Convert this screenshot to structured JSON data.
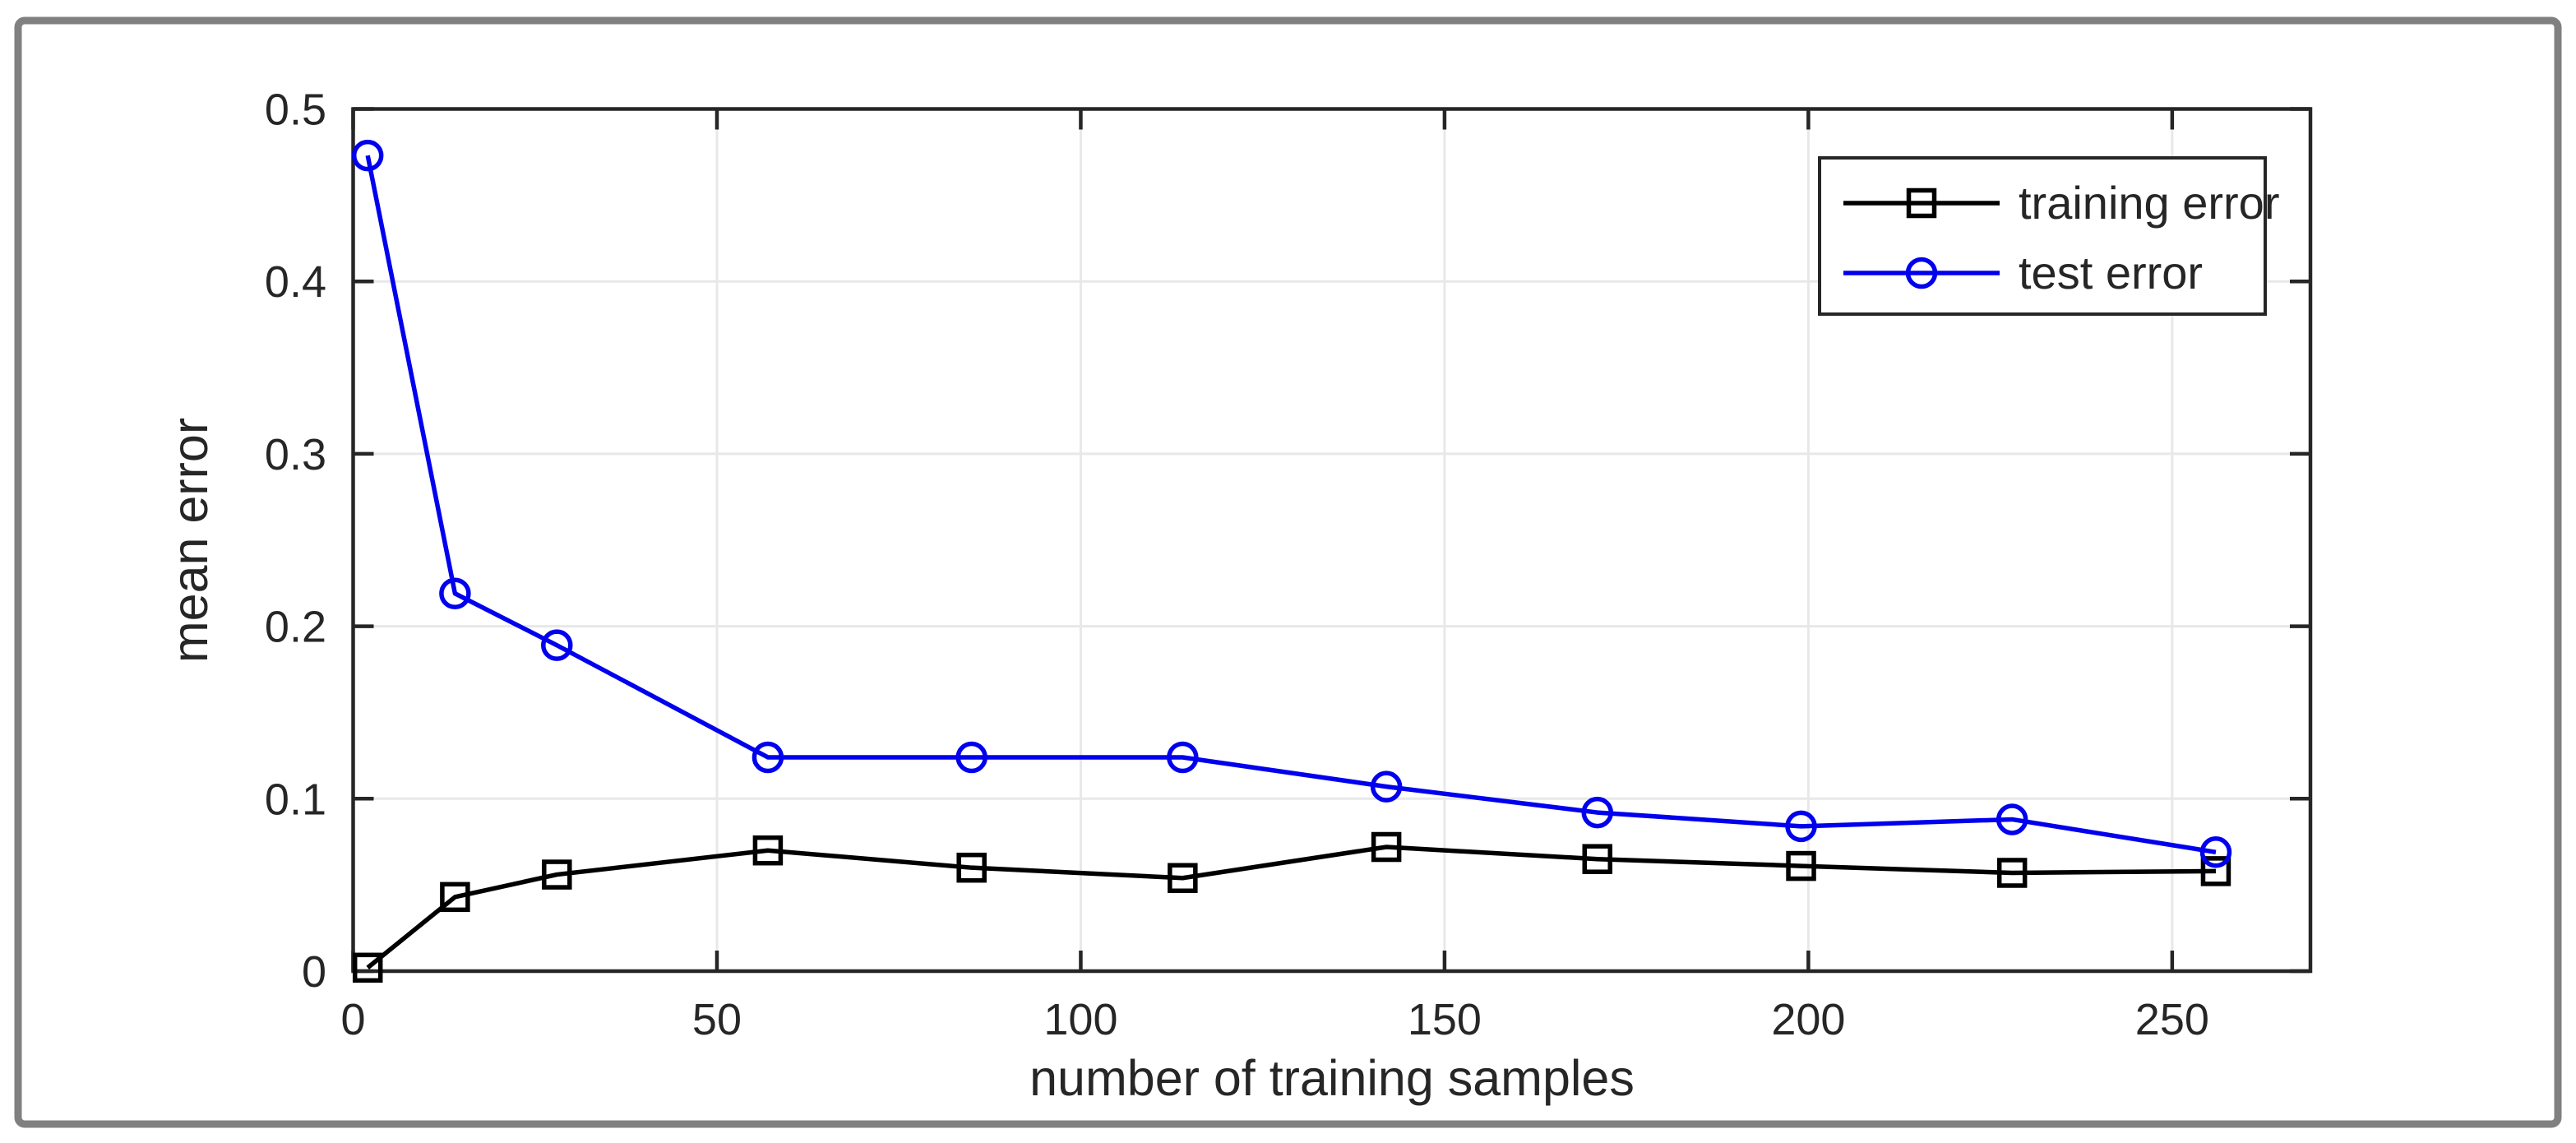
{
  "figure": {
    "background": "#ffffff",
    "border_color": "#808080",
    "axis_color": "#262626",
    "grid_color": "#e8e8e8",
    "tick_label_color": "#262626"
  },
  "chart_data": {
    "type": "line",
    "title": "",
    "xlabel": "number of training samples",
    "ylabel": "mean error",
    "xlim": [
      0,
      269
    ],
    "ylim": [
      0,
      0.5
    ],
    "xticks": [
      0,
      50,
      100,
      150,
      200,
      250
    ],
    "yticks": [
      0,
      0.1,
      0.2,
      0.3,
      0.4,
      0.5
    ],
    "grid": true,
    "legend_position": "top-right",
    "x": [
      2,
      14,
      28,
      57,
      85,
      114,
      142,
      171,
      199,
      228,
      256
    ],
    "series": [
      {
        "name": "training error",
        "color": "#000000",
        "marker": "square",
        "values": [
          0.002,
          0.043,
          0.056,
          0.07,
          0.06,
          0.054,
          0.072,
          0.065,
          0.061,
          0.057,
          0.058
        ]
      },
      {
        "name": "test error",
        "color": "#0000ee",
        "marker": "circle",
        "values": [
          0.473,
          0.219,
          0.189,
          0.124,
          0.124,
          0.124,
          0.107,
          0.092,
          0.084,
          0.088,
          0.069
        ]
      }
    ]
  }
}
